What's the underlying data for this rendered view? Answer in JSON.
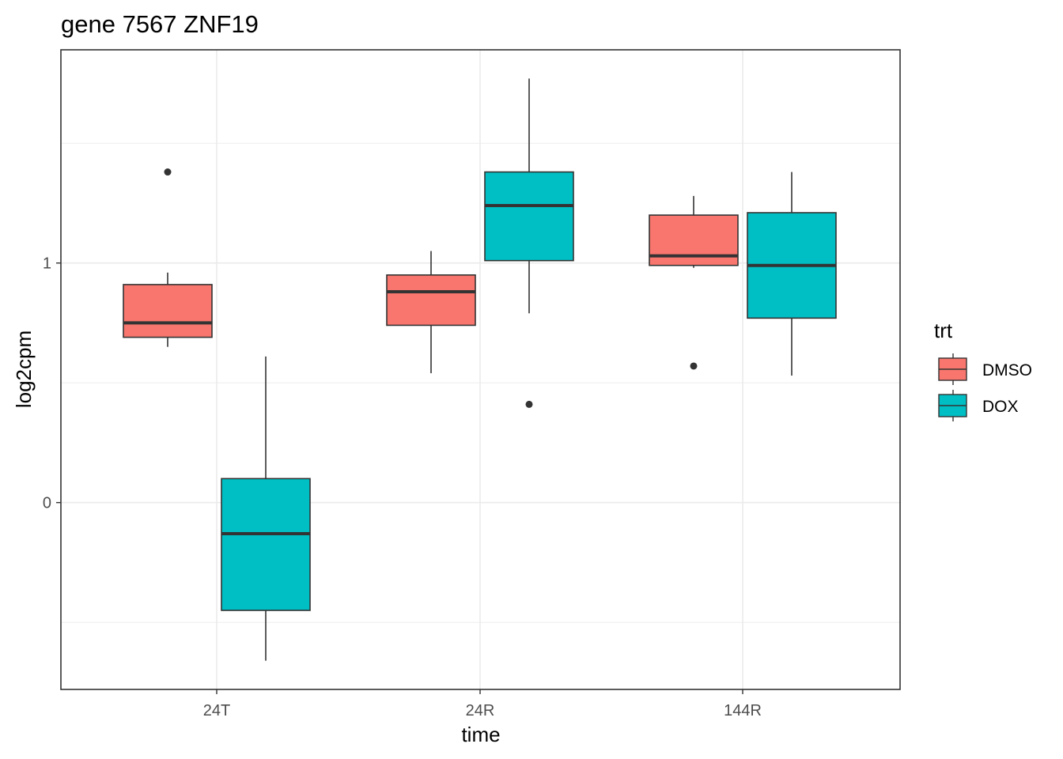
{
  "chart_data": {
    "type": "boxplot",
    "title": "gene 7567 ZNF19",
    "xlabel": "time",
    "ylabel": "log2cpm",
    "categories": [
      "24T",
      "24R",
      "144R"
    ],
    "ylim": [
      -0.78,
      1.89
    ],
    "yticks": [
      {
        "value": 0,
        "label": "0"
      },
      {
        "value": 1,
        "label": "1"
      }
    ],
    "grid": true,
    "legend": {
      "title": "trt",
      "position": "right",
      "entries": [
        {
          "label": "DMSO",
          "color": "#F8766D"
        },
        {
          "label": "DOX",
          "color": "#00BFC4"
        }
      ]
    },
    "series": [
      {
        "name": "DMSO",
        "color": "#F8766D",
        "boxes": [
          {
            "category": "24T",
            "whisker_low": 0.65,
            "q1": 0.69,
            "median": 0.75,
            "q3": 0.91,
            "whisker_high": 0.96,
            "outliers": [
              1.38
            ]
          },
          {
            "category": "24R",
            "whisker_low": 0.54,
            "q1": 0.74,
            "median": 0.88,
            "q3": 0.95,
            "whisker_high": 1.05,
            "outliers": []
          },
          {
            "category": "144R",
            "whisker_low": 0.98,
            "q1": 0.99,
            "median": 1.03,
            "q3": 1.2,
            "whisker_high": 1.28,
            "outliers": [
              0.57
            ]
          }
        ]
      },
      {
        "name": "DOX",
        "color": "#00BFC4",
        "boxes": [
          {
            "category": "24T",
            "whisker_low": -0.66,
            "q1": -0.45,
            "median": -0.13,
            "q3": 0.1,
            "whisker_high": 0.61,
            "outliers": []
          },
          {
            "category": "24R",
            "whisker_low": 0.79,
            "q1": 1.01,
            "median": 1.24,
            "q3": 1.38,
            "whisker_high": 1.77,
            "outliers": [
              0.41
            ]
          },
          {
            "category": "144R",
            "whisker_low": 0.53,
            "q1": 0.77,
            "median": 0.99,
            "q3": 1.21,
            "whisker_high": 1.38,
            "outliers": []
          }
        ]
      }
    ]
  }
}
